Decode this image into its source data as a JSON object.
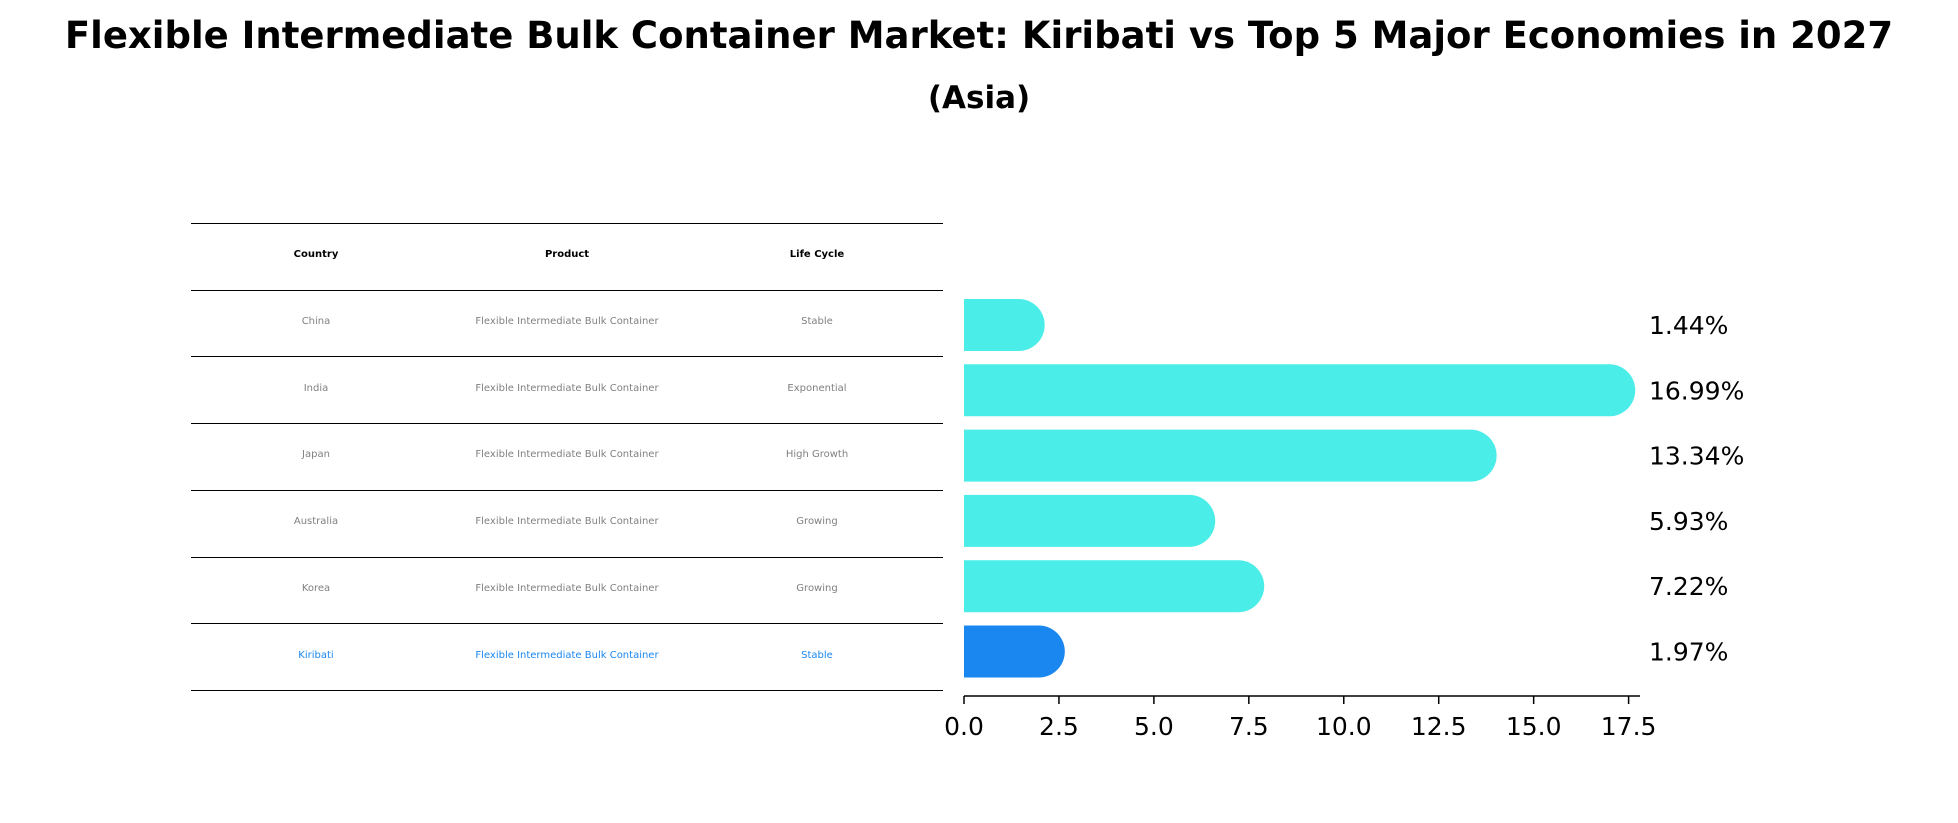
{
  "title": "Flexible Intermediate Bulk Container Market: Kiribati vs Top 5 Major Economies in 2027",
  "subtitle": "(Asia)",
  "table": {
    "headers": [
      "Country",
      "Product",
      "Life Cycle"
    ],
    "rows": [
      [
        "China",
        "Flexible Intermediate Bulk Container",
        "Stable"
      ],
      [
        "India",
        "Flexible Intermediate Bulk Container",
        "Exponential"
      ],
      [
        "Japan",
        "Flexible Intermediate Bulk Container",
        "High Growth"
      ],
      [
        "Australia",
        "Flexible Intermediate Bulk Container",
        "Growing"
      ],
      [
        "Korea",
        "Flexible Intermediate Bulk Container",
        "Growing"
      ],
      [
        "Kiribati",
        "Flexible Intermediate Bulk Container",
        "Stable"
      ]
    ],
    "highlight_row": 5
  },
  "chart_data": {
    "type": "bar",
    "orientation": "horizontal",
    "categories": [
      "China",
      "India",
      "Japan",
      "Australia",
      "Korea",
      "Kiribati"
    ],
    "values": [
      1.44,
      16.99,
      13.34,
      5.93,
      7.22,
      1.97
    ],
    "data_labels": [
      "1.44%",
      "16.99%",
      "13.34%",
      "5.93%",
      "7.22%",
      "1.97%"
    ],
    "xlim": [
      0,
      17.8
    ],
    "xticks": [
      0.0,
      2.5,
      5.0,
      7.5,
      10.0,
      12.5,
      15.0,
      17.5
    ],
    "xtick_labels": [
      "0.0",
      "2.5",
      "5.0",
      "7.5",
      "10.0",
      "12.5",
      "15.0",
      "17.5"
    ],
    "grid": false,
    "colors": {
      "default": "#4aede8",
      "highlight": "#1a87f0"
    },
    "highlight_index": 5
  }
}
